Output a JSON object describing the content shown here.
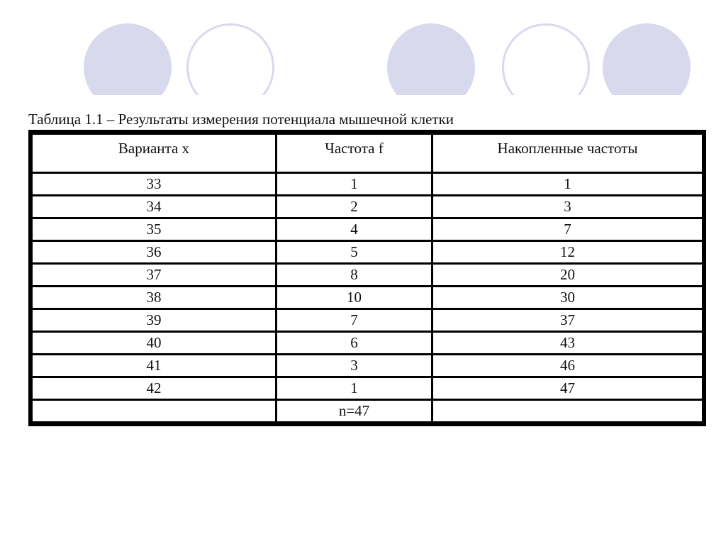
{
  "decor": {
    "circle_color": "#d9d9ee"
  },
  "title": "Таблица 1.1 – Результаты измерения потенциала мышечной клетки",
  "table": {
    "headers": [
      "Варианта x",
      "Частота f",
      "Накопленные частоты"
    ],
    "rows": [
      [
        "33",
        "1",
        "1"
      ],
      [
        "34",
        "2",
        "3"
      ],
      [
        "35",
        "4",
        "7"
      ],
      [
        "36",
        "5",
        "12"
      ],
      [
        "37",
        "8",
        "20"
      ],
      [
        "38",
        "10",
        "30"
      ],
      [
        "39",
        "7",
        "37"
      ],
      [
        "40",
        "6",
        "43"
      ],
      [
        "41",
        "3",
        "46"
      ],
      [
        "42",
        "1",
        "47"
      ]
    ],
    "footer": [
      "",
      "n=47",
      ""
    ]
  }
}
